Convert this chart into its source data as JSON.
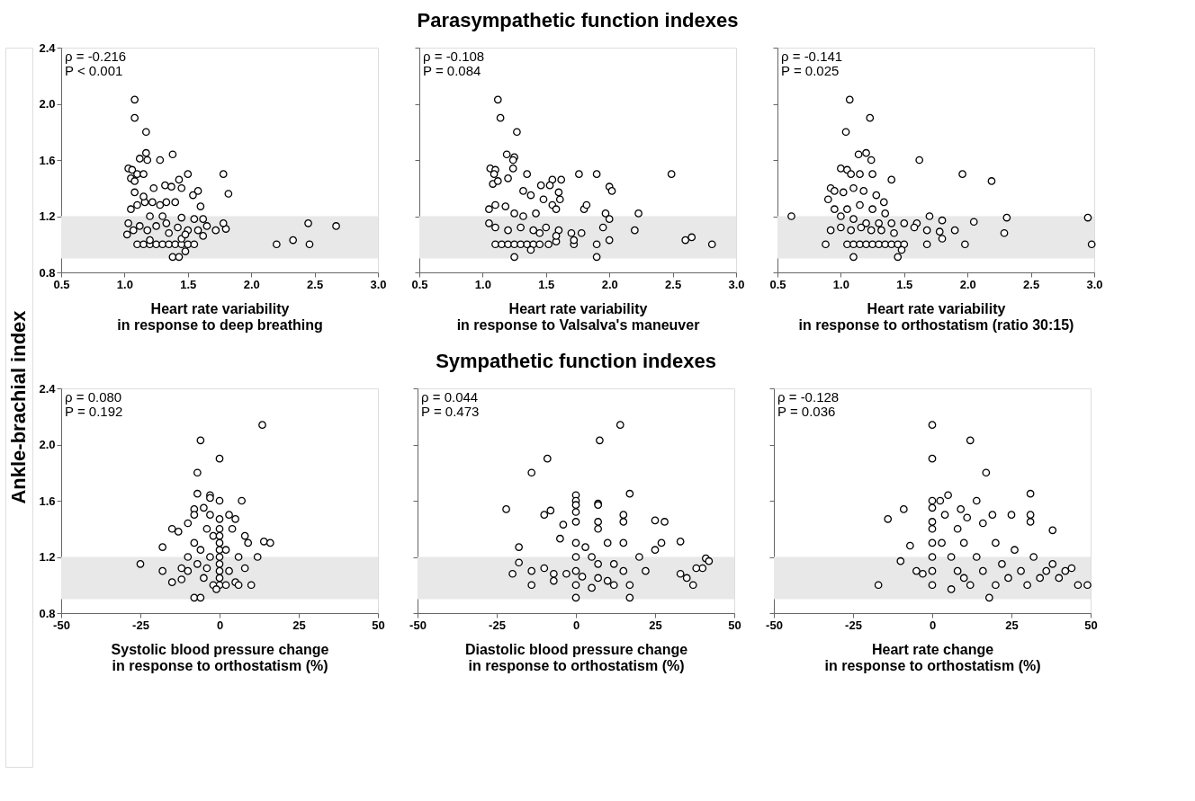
{
  "chart_data": [
    {
      "type": "scatter",
      "ylabel": "Ankle-brachial index",
      "xlabel": "Heart rate variability\nin response to deep breathing",
      "annotations": [
        "ρ = -0.216",
        "P < 0.001"
      ],
      "marker": "circle",
      "grid": false,
      "xlim": [
        0.5,
        3.0
      ],
      "xticks": [
        0.5,
        {
          "value": 1,
          "label": "1.0"
        },
        1.5,
        {
          "value": 2,
          "label": "2.0"
        },
        2.5,
        {
          "value": 3,
          "label": "3.0"
        }
      ],
      "ylim": [
        0.8,
        2.4
      ],
      "yticks": [
        0.8,
        {
          "value": 1.2,
          "label": "1.2"
        },
        1.6,
        {
          "value": 2,
          "label": "2.0"
        },
        2.4
      ],
      "bands": [
        {
          "axis": "y",
          "from": 0.9,
          "to": 1.2,
          "color": "#e8e8e8"
        }
      ],
      "series": [
        {
          "color": "#000000",
          "x": [
            1.08,
            1.08,
            1.17,
            1.17,
            1.18,
            1.12,
            1.28,
            1.38,
            1.03,
            1.06,
            1.05,
            1.1,
            1.15,
            1.08,
            1.43,
            1.5,
            1.78,
            1.45,
            1.32,
            1.37,
            1.23,
            1.58,
            1.82,
            1.54,
            1.6,
            1.05,
            1.1,
            1.16,
            1.22,
            1.28,
            1.33,
            1.4,
            1.08,
            1.15,
            1.2,
            1.3,
            1.45,
            1.55,
            1.62,
            1.65,
            1.72,
            1.8,
            1.78,
            1.03,
            1.02,
            1.07,
            1.12,
            1.18,
            1.25,
            1.33,
            1.42,
            1.5,
            1.58,
            1.1,
            1.15,
            1.2,
            1.25,
            1.3,
            1.35,
            1.4,
            1.45,
            1.5,
            1.55,
            1.2,
            1.45,
            1.38,
            1.43,
            1.48,
            2.2,
            2.33,
            2.45,
            2.46,
            2.67,
            1.35,
            1.48,
            1.62
          ],
          "values": [
            2.03,
            1.9,
            1.8,
            1.65,
            1.6,
            1.61,
            1.6,
            1.64,
            1.54,
            1.53,
            1.47,
            1.5,
            1.5,
            1.45,
            1.46,
            1.5,
            1.5,
            1.4,
            1.42,
            1.41,
            1.4,
            1.38,
            1.36,
            1.35,
            1.27,
            1.25,
            1.28,
            1.3,
            1.3,
            1.28,
            1.3,
            1.3,
            1.37,
            1.34,
            1.2,
            1.2,
            1.19,
            1.18,
            1.18,
            1.13,
            1.1,
            1.11,
            1.15,
            1.15,
            1.07,
            1.1,
            1.13,
            1.1,
            1.13,
            1.15,
            1.12,
            1.1,
            1.1,
            1.0,
            1.0,
            1.0,
            1.0,
            1.0,
            1.0,
            1.0,
            1.0,
            1.0,
            1.0,
            1.03,
            1.04,
            0.91,
            0.91,
            0.95,
            1.0,
            1.03,
            1.15,
            1.0,
            1.13,
            1.08,
            1.07,
            1.06
          ]
        }
      ]
    },
    {
      "type": "scatter",
      "title": "Parasympathetic function indexes",
      "xlabel": "Heart rate variability\nin response to Valsalva's maneuver",
      "annotations": [
        "ρ = -0.108",
        "P = 0.084"
      ],
      "marker": "circle",
      "grid": false,
      "tick_labels": "x",
      "xlim": [
        0.5,
        3.0
      ],
      "xticks": [
        0.5,
        {
          "value": 1,
          "label": "1.0"
        },
        1.5,
        {
          "value": 2,
          "label": "2.0"
        },
        2.5,
        {
          "value": 3,
          "label": "3.0"
        }
      ],
      "ylim": [
        0.8,
        2.4
      ],
      "yticks": [
        {
          "value": 0.8,
          "label": null
        },
        {
          "value": 1.2,
          "label": null
        },
        {
          "value": 1.6,
          "label": null
        },
        {
          "value": 2,
          "label": null
        },
        {
          "value": 2.4,
          "label": null
        }
      ],
      "bands": [
        {
          "axis": "y",
          "from": 0.9,
          "to": 1.2,
          "color": "#e8e8e8"
        }
      ],
      "series": [
        {
          "color": "#000000",
          "x": [
            1.12,
            1.14,
            1.27,
            1.19,
            1.25,
            1.24,
            1.06,
            1.1,
            1.09,
            1.24,
            1.35,
            1.55,
            1.62,
            1.76,
            1.9,
            2.49,
            2.0,
            2.02,
            1.08,
            1.12,
            1.2,
            1.46,
            1.53,
            1.32,
            1.38,
            1.6,
            1.61,
            1.48,
            1.55,
            1.58,
            1.8,
            1.82,
            1.97,
            2.23,
            2.0,
            1.05,
            1.1,
            1.18,
            1.25,
            1.32,
            1.42,
            1.05,
            1.1,
            1.2,
            1.3,
            1.4,
            1.5,
            1.6,
            1.7,
            1.78,
            1.95,
            2.2,
            1.1,
            1.15,
            1.2,
            1.25,
            1.3,
            1.35,
            1.4,
            1.45,
            1.52,
            1.58,
            1.72,
            1.72,
            1.9,
            2.0,
            1.38,
            1.25,
            1.9,
            2.6,
            2.65,
            2.81,
            1.58,
            1.45
          ],
          "values": [
            2.03,
            1.9,
            1.8,
            1.64,
            1.62,
            1.6,
            1.54,
            1.53,
            1.5,
            1.54,
            1.5,
            1.46,
            1.46,
            1.5,
            1.5,
            1.5,
            1.41,
            1.38,
            1.43,
            1.45,
            1.47,
            1.42,
            1.42,
            1.38,
            1.35,
            1.37,
            1.32,
            1.32,
            1.28,
            1.25,
            1.25,
            1.28,
            1.22,
            1.22,
            1.18,
            1.25,
            1.28,
            1.27,
            1.22,
            1.2,
            1.22,
            1.15,
            1.12,
            1.1,
            1.12,
            1.1,
            1.12,
            1.1,
            1.08,
            1.08,
            1.12,
            1.1,
            1.0,
            1.0,
            1.0,
            1.0,
            1.0,
            1.0,
            1.0,
            1.0,
            1.0,
            1.02,
            1.0,
            1.03,
            1.0,
            1.03,
            0.96,
            0.91,
            0.91,
            1.03,
            1.05,
            1.0,
            1.06,
            1.08
          ]
        }
      ]
    },
    {
      "type": "scatter",
      "xlabel": "Heart rate variability\nin response to orthostatism (ratio 30:15)",
      "annotations": [
        "ρ = -0.141",
        "P = 0.025"
      ],
      "marker": "circle",
      "grid": false,
      "tick_labels": "x",
      "xlim": [
        0.5,
        3.0
      ],
      "xticks": [
        0.5,
        {
          "value": 1,
          "label": "1.0"
        },
        1.5,
        {
          "value": 2,
          "label": "2.0"
        },
        2.5,
        {
          "value": 3,
          "label": "3.0"
        }
      ],
      "ylim": [
        0.8,
        2.4
      ],
      "yticks": [
        {
          "value": 0.8,
          "label": null
        },
        {
          "value": 1.2,
          "label": null
        },
        {
          "value": 1.6,
          "label": null
        },
        {
          "value": 2,
          "label": null
        },
        {
          "value": 2.4,
          "label": null
        }
      ],
      "bands": [
        {
          "axis": "y",
          "from": 0.9,
          "to": 1.2,
          "color": "#e8e8e8"
        }
      ],
      "series": [
        {
          "color": "#000000",
          "x": [
            0.61,
            1.07,
            1.23,
            1.04,
            1.14,
            1.2,
            1.24,
            1.62,
            1.0,
            1.05,
            1.08,
            1.15,
            1.25,
            1.4,
            1.96,
            2.19,
            0.92,
            0.95,
            1.02,
            1.1,
            1.18,
            1.28,
            1.34,
            0.9,
            0.95,
            1.05,
            1.15,
            1.25,
            1.35,
            1.7,
            1.8,
            1.0,
            1.1,
            1.2,
            1.3,
            1.4,
            1.5,
            1.6,
            1.68,
            1.9,
            2.05,
            2.31,
            2.95,
            0.92,
            1.0,
            1.08,
            1.16,
            1.24,
            1.32,
            1.42,
            0.88,
            1.05,
            1.1,
            1.15,
            1.2,
            1.25,
            1.3,
            1.35,
            1.4,
            1.45,
            1.5,
            1.68,
            1.8,
            1.98,
            2.29,
            2.98,
            1.1,
            1.45,
            1.48,
            1.58,
            1.78
          ],
          "values": [
            1.2,
            2.03,
            1.9,
            1.8,
            1.64,
            1.65,
            1.6,
            1.6,
            1.54,
            1.53,
            1.5,
            1.5,
            1.5,
            1.46,
            1.5,
            1.45,
            1.4,
            1.38,
            1.37,
            1.4,
            1.38,
            1.35,
            1.3,
            1.32,
            1.25,
            1.25,
            1.28,
            1.25,
            1.22,
            1.2,
            1.17,
            1.2,
            1.18,
            1.15,
            1.15,
            1.15,
            1.15,
            1.15,
            1.1,
            1.1,
            1.16,
            1.19,
            1.19,
            1.1,
            1.12,
            1.1,
            1.12,
            1.1,
            1.1,
            1.08,
            1.0,
            1.0,
            1.0,
            1.0,
            1.0,
            1.0,
            1.0,
            1.0,
            1.0,
            1.0,
            1.0,
            1.0,
            1.04,
            1.0,
            1.08,
            1.0,
            0.91,
            0.91,
            0.96,
            1.12,
            1.09
          ]
        }
      ]
    },
    {
      "type": "scatter",
      "xlabel": "Systolic blood pressure change\nin response to orthostatism (%)",
      "annotations": [
        "ρ = 0.080",
        "P = 0.192"
      ],
      "marker": "circle",
      "grid": false,
      "xlim": [
        -50,
        50
      ],
      "xticks": [
        -50,
        -25,
        0,
        25,
        50
      ],
      "ylim": [
        0.8,
        2.4
      ],
      "yticks": [
        0.8,
        {
          "value": 1.2,
          "label": "1.2"
        },
        1.6,
        {
          "value": 2,
          "label": "2.0"
        },
        2.4
      ],
      "bands": [
        {
          "axis": "y",
          "from": 0.9,
          "to": 1.2,
          "color": "#e8e8e8"
        }
      ],
      "series": [
        {
          "color": "#000000",
          "x": [
            13.5,
            -6,
            0,
            -7,
            -7,
            -3,
            -3,
            0,
            7,
            -8,
            -8,
            -5,
            -3,
            0,
            3,
            5,
            -10,
            -15,
            -18,
            -13,
            -25,
            -18,
            -15,
            -12,
            -10,
            -8,
            -6,
            -4,
            -2,
            0,
            0,
            0,
            0,
            0,
            0,
            0,
            0,
            0,
            2,
            4,
            6,
            8,
            9,
            -8,
            -6,
            -2,
            -5,
            -10,
            -12,
            -4,
            3,
            5,
            8,
            10,
            12,
            14,
            16,
            -1,
            -7,
            -3,
            2,
            6
          ],
          "values": [
            2.14,
            2.03,
            1.9,
            1.8,
            1.65,
            1.64,
            1.62,
            1.6,
            1.6,
            1.54,
            1.5,
            1.55,
            1.5,
            1.47,
            1.5,
            1.47,
            1.44,
            1.4,
            1.27,
            1.38,
            1.15,
            1.1,
            1.02,
            1.04,
            1.2,
            1.3,
            1.25,
            1.4,
            1.35,
            1.4,
            1.35,
            1.3,
            1.25,
            1.2,
            1.15,
            1.1,
            1.05,
            1.0,
            1.25,
            1.4,
            1.2,
            1.35,
            1.3,
            0.91,
            0.91,
            1.0,
            1.05,
            1.1,
            1.12,
            1.12,
            1.1,
            1.02,
            1.12,
            1.0,
            1.2,
            1.31,
            1.3,
            0.97,
            1.15,
            1.2,
            1.0,
            1.0
          ]
        }
      ]
    },
    {
      "type": "scatter",
      "title": "Sympathetic function indexes",
      "xlabel": "Diastolic blood pressure change\nin response to orthostatism (%)",
      "annotations": [
        "ρ = 0.044",
        "P = 0.473"
      ],
      "marker": "circle",
      "grid": false,
      "tick_labels": "x",
      "xlim": [
        -50,
        50
      ],
      "xticks": [
        -50,
        -25,
        0,
        25,
        50
      ],
      "ylim": [
        0.8,
        2.4
      ],
      "yticks": [
        {
          "value": 0.8,
          "label": null
        },
        {
          "value": 1.2,
          "label": null
        },
        {
          "value": 1.6,
          "label": null
        },
        {
          "value": 2,
          "label": null
        },
        {
          "value": 2.4,
          "label": null
        }
      ],
      "bands": [
        {
          "axis": "y",
          "from": 0.9,
          "to": 1.2,
          "color": "#e8e8e8"
        }
      ],
      "series": [
        {
          "color": "#000000",
          "x": [
            14,
            7.5,
            -9,
            -14,
            -22,
            -10,
            -8,
            0,
            0,
            0,
            0,
            7,
            7,
            17,
            15,
            7,
            -4,
            -5,
            -18,
            -18,
            -14,
            -14,
            -7,
            -7,
            0,
            0,
            0,
            0,
            0,
            0,
            3,
            5,
            7,
            7,
            7,
            10,
            12,
            15,
            15,
            15,
            17,
            17,
            20,
            22,
            25,
            28,
            27,
            25,
            33,
            33,
            35,
            37,
            40,
            41,
            42,
            38,
            -10,
            -3,
            2,
            10,
            -20,
            12,
            5
          ],
          "values": [
            2.14,
            2.03,
            1.9,
            1.8,
            1.54,
            1.5,
            1.53,
            1.64,
            1.6,
            1.57,
            1.52,
            1.58,
            1.57,
            1.65,
            1.5,
            1.45,
            1.43,
            1.33,
            1.27,
            1.16,
            1.1,
            1.0,
            1.08,
            1.03,
            1.45,
            1.3,
            1.2,
            1.1,
            1.0,
            0.91,
            1.27,
            1.2,
            1.4,
            1.15,
            1.05,
            1.3,
            1.15,
            1.45,
            1.3,
            1.1,
            1.0,
            0.91,
            1.2,
            1.1,
            1.46,
            1.45,
            1.3,
            1.25,
            1.31,
            1.08,
            1.05,
            1.0,
            1.12,
            1.19,
            1.17,
            1.12,
            1.12,
            1.08,
            1.06,
            1.03,
            1.08,
            1.0,
            0.98
          ]
        }
      ]
    },
    {
      "type": "scatter",
      "xlabel": "Heart rate change\nin response to orthostatism (%)",
      "annotations": [
        "ρ = -0.128",
        "P = 0.036"
      ],
      "marker": "circle",
      "grid": false,
      "tick_labels": "x",
      "xlim": [
        -50,
        50
      ],
      "xticks": [
        -50,
        -25,
        0,
        25,
        50
      ],
      "ylim": [
        0.8,
        2.4
      ],
      "yticks": [
        {
          "value": 0.8,
          "label": null
        },
        {
          "value": 1.2,
          "label": null
        },
        {
          "value": 1.6,
          "label": null
        },
        {
          "value": 2,
          "label": null
        },
        {
          "value": 2.4,
          "label": null
        }
      ],
      "bands": [
        {
          "axis": "y",
          "from": 0.9,
          "to": 1.2,
          "color": "#e8e8e8"
        }
      ],
      "series": [
        {
          "color": "#000000",
          "x": [
            0,
            12,
            0,
            17,
            0,
            5,
            2.5,
            14,
            31,
            -14,
            -9,
            0,
            0,
            0,
            0,
            0,
            0,
            0,
            4,
            9,
            11,
            16,
            19,
            25,
            31,
            31,
            38,
            -17,
            -10,
            -7,
            -5,
            3,
            6,
            8,
            10,
            12,
            14,
            16,
            18,
            20,
            22,
            24,
            26,
            28,
            30,
            32,
            34,
            36,
            38,
            40,
            42,
            44,
            46,
            49,
            8,
            6,
            10,
            20,
            -3
          ],
          "values": [
            2.14,
            2.03,
            1.9,
            1.8,
            1.6,
            1.64,
            1.6,
            1.6,
            1.65,
            1.47,
            1.54,
            1.55,
            1.45,
            1.4,
            1.3,
            1.2,
            1.1,
            1.0,
            1.5,
            1.54,
            1.48,
            1.44,
            1.5,
            1.5,
            1.5,
            1.45,
            1.39,
            1.0,
            1.17,
            1.28,
            1.1,
            1.3,
            1.2,
            1.1,
            1.3,
            1.0,
            1.2,
            1.1,
            0.91,
            1.3,
            1.15,
            1.05,
            1.25,
            1.1,
            1.0,
            1.2,
            1.05,
            1.1,
            1.15,
            1.05,
            1.1,
            1.12,
            1.0,
            1.0,
            1.4,
            0.97,
            1.05,
            1.0,
            1.08
          ]
        }
      ]
    }
  ]
}
